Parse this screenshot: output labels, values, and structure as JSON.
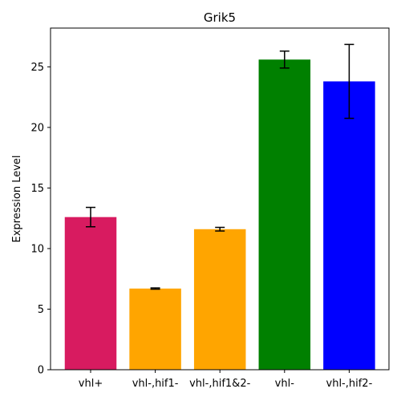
{
  "chart_data": {
    "type": "bar",
    "title": "Grik5",
    "xlabel": "",
    "ylabel": "Expression Level",
    "ylim": [
      0,
      28.2
    ],
    "yticks": [
      0,
      5,
      10,
      15,
      20,
      25
    ],
    "grid": false,
    "legend": "none",
    "categories": [
      "vhl+",
      "vhl-,hif1-",
      "vhl-,hif1&2-",
      "vhl-",
      "vhl-,hif2-"
    ],
    "values": [
      12.6,
      6.7,
      11.6,
      25.6,
      23.8
    ],
    "errors": [
      0.8,
      0.05,
      0.15,
      0.7,
      3.05
    ],
    "colors": [
      "#d81b60",
      "#ffa500",
      "#ffa500",
      "#008000",
      "#0000ff"
    ]
  }
}
